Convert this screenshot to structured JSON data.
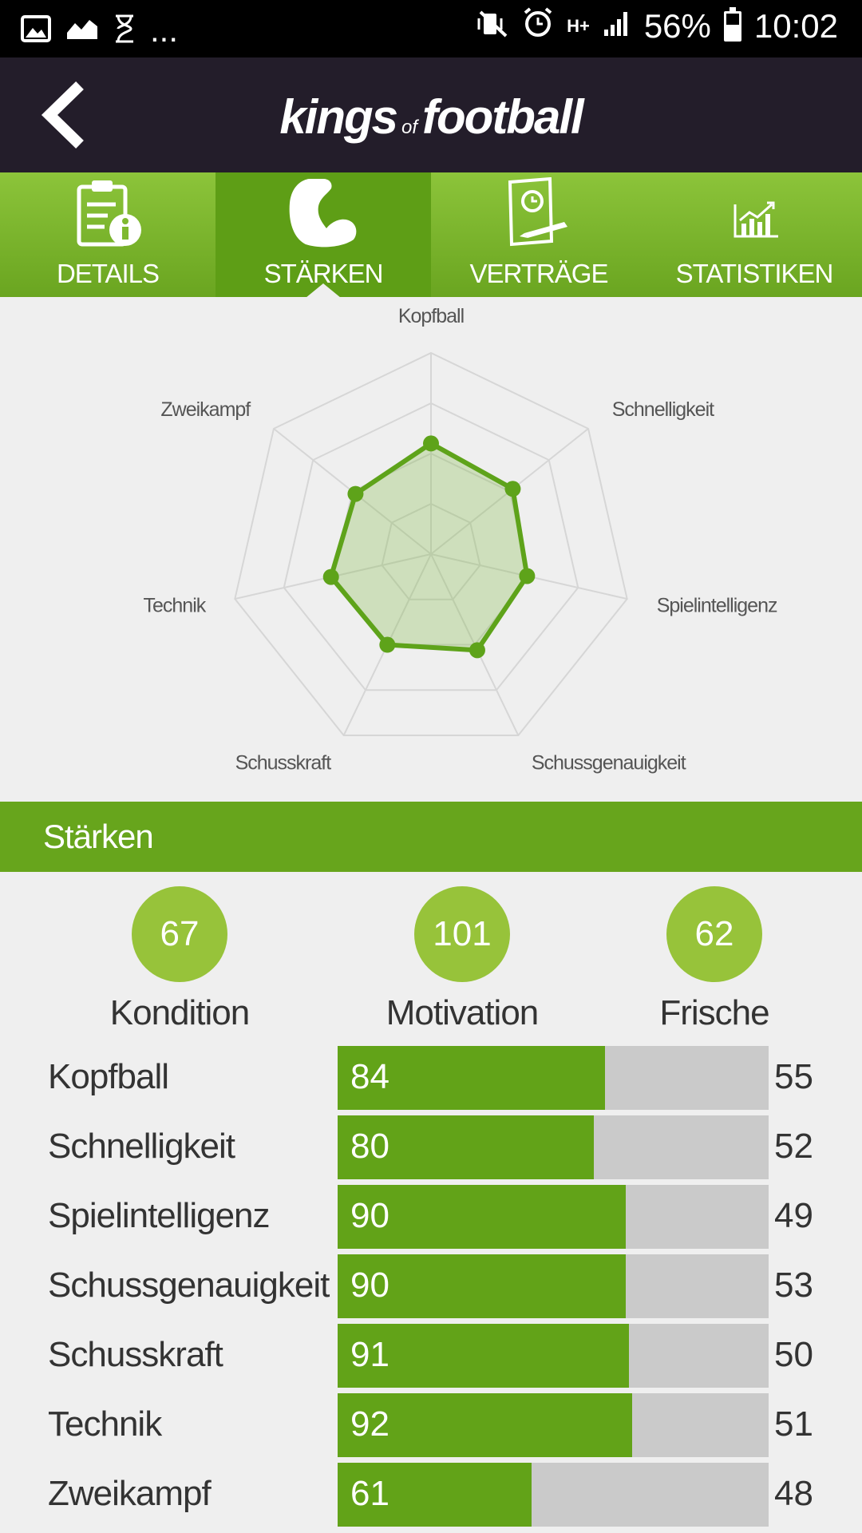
{
  "status": {
    "icons_left": [
      "image-icon",
      "chart-icon",
      "hourglass-icon"
    ],
    "more": "...",
    "battery": "56%",
    "time": "10:02",
    "network": "H+"
  },
  "header": {
    "logo_left": "kings",
    "logo_mid": "of",
    "logo_right": "football"
  },
  "tabs": [
    {
      "label": "DETAILS",
      "icon": "details-info-icon",
      "active": false
    },
    {
      "label": "STÄRKEN",
      "icon": "muscle-icon",
      "active": true
    },
    {
      "label": "VERTRÄGE",
      "icon": "contract-icon",
      "active": false
    },
    {
      "label": "STATISTIKEN",
      "icon": "statistics-chart-icon",
      "active": false
    }
  ],
  "chart_data": {
    "type": "radar",
    "axes": [
      "Kopfball",
      "Schnelligkeit",
      "Spielintelligenz",
      "Schussgenauigkeit",
      "Schusskraft",
      "Technik",
      "Zweikampf"
    ],
    "values": [
      55,
      52,
      49,
      53,
      50,
      51,
      48
    ],
    "range": [
      0,
      100
    ],
    "rings": 4,
    "color": "#5ea31a"
  },
  "section": {
    "title": "Stärken"
  },
  "summary": [
    {
      "value": "67",
      "label": "Kondition"
    },
    {
      "value": "101",
      "label": "Motivation"
    },
    {
      "value": "62",
      "label": "Frische"
    }
  ],
  "attributes": [
    {
      "name": "Kopfball",
      "value": 84,
      "right": 55,
      "fill": 0.62
    },
    {
      "name": "Schnelligkeit",
      "value": 80,
      "right": 52,
      "fill": 0.594
    },
    {
      "name": "Spielintelligenz",
      "value": 90,
      "right": 49,
      "fill": 0.668
    },
    {
      "name": "Schussgenauigkeit",
      "value": 90,
      "right": 53,
      "fill": 0.668
    },
    {
      "name": "Schusskraft",
      "value": 91,
      "right": 50,
      "fill": 0.675
    },
    {
      "name": "Technik",
      "value": 92,
      "right": 51,
      "fill": 0.683
    },
    {
      "name": "Zweikampf",
      "value": 61,
      "right": 48,
      "fill": 0.45
    }
  ]
}
